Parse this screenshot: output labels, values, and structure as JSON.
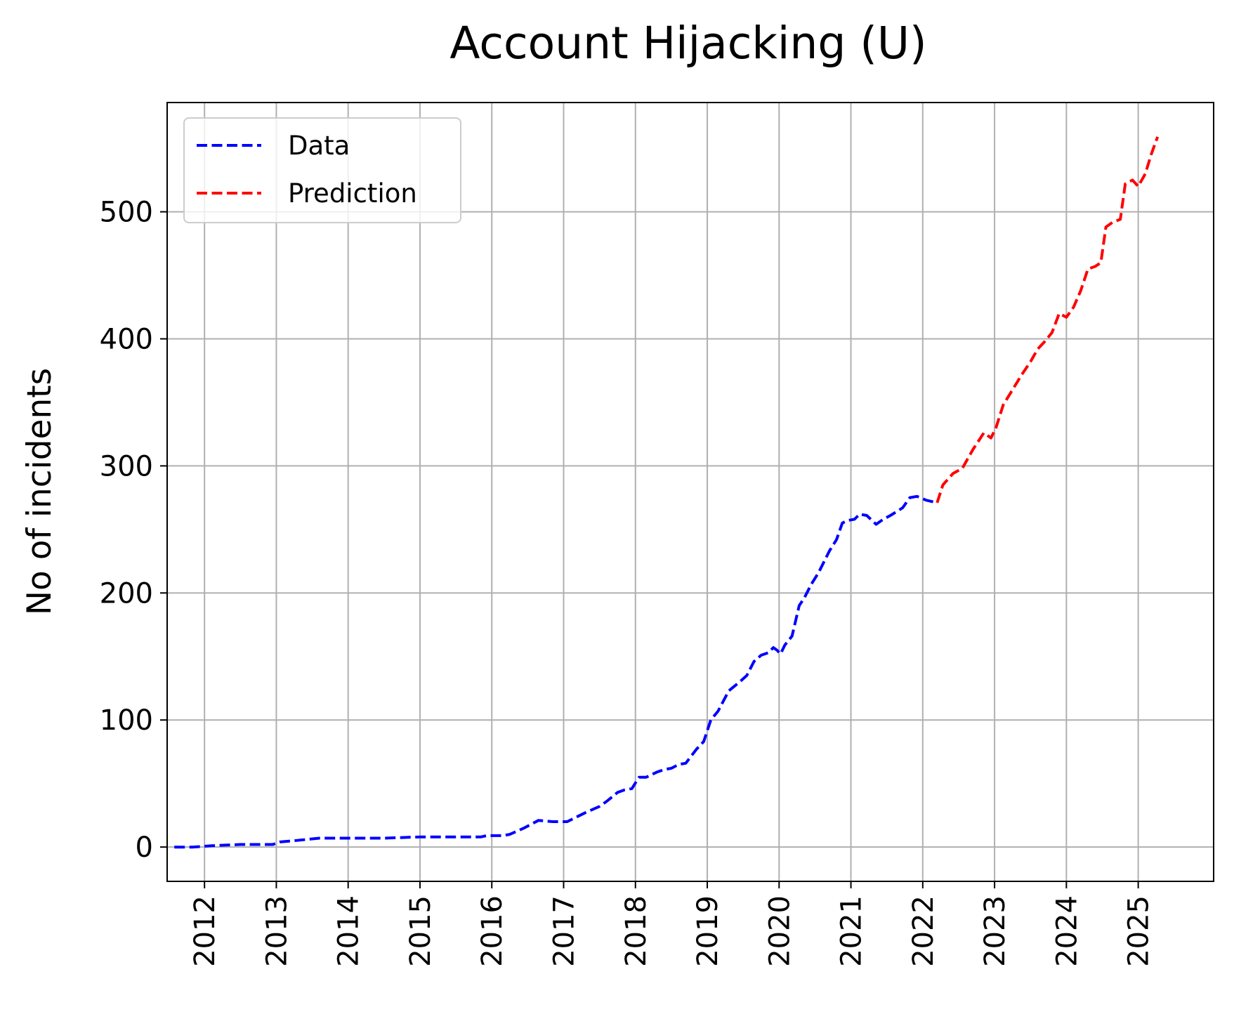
{
  "chart_data": {
    "type": "line",
    "title": "Account Hijacking (U)",
    "xlabel": "",
    "ylabel": "No of incidents",
    "x_ticks": [
      "2012",
      "2013",
      "2014",
      "2015",
      "2016",
      "2017",
      "2018",
      "2019",
      "2020",
      "2021",
      "2022",
      "2023",
      "2024",
      "2025"
    ],
    "y_ticks": [
      "0",
      "100",
      "200",
      "300",
      "400",
      "500"
    ],
    "xlim": [
      2011.48,
      2026.05
    ],
    "ylim": [
      -27,
      586
    ],
    "grid": true,
    "legend_position": "top-left",
    "series": [
      {
        "name": "Data",
        "color": "#0000ff",
        "style": "dashed",
        "points": [
          [
            2011.58,
            0
          ],
          [
            2011.83,
            0
          ],
          [
            2012.1,
            1
          ],
          [
            2012.5,
            2
          ],
          [
            2012.95,
            2
          ],
          [
            2013.05,
            4
          ],
          [
            2013.25,
            5
          ],
          [
            2013.6,
            7
          ],
          [
            2014.0,
            7
          ],
          [
            2014.5,
            7
          ],
          [
            2015.0,
            8
          ],
          [
            2015.3,
            8
          ],
          [
            2015.6,
            8
          ],
          [
            2015.85,
            8
          ],
          [
            2015.93,
            9
          ],
          [
            2016.15,
            9
          ],
          [
            2016.25,
            10
          ],
          [
            2016.45,
            15
          ],
          [
            2016.65,
            21
          ],
          [
            2016.85,
            20
          ],
          [
            2017.05,
            20
          ],
          [
            2017.3,
            27
          ],
          [
            2017.5,
            32
          ],
          [
            2017.6,
            36
          ],
          [
            2017.75,
            43
          ],
          [
            2017.85,
            45
          ],
          [
            2017.95,
            46
          ],
          [
            2018.05,
            55
          ],
          [
            2018.15,
            55
          ],
          [
            2018.3,
            59
          ],
          [
            2018.4,
            61
          ],
          [
            2018.5,
            62
          ],
          [
            2018.6,
            65
          ],
          [
            2018.7,
            66
          ],
          [
            2018.85,
            77
          ],
          [
            2018.95,
            83
          ],
          [
            2019.05,
            100
          ],
          [
            2019.15,
            107
          ],
          [
            2019.3,
            123
          ],
          [
            2019.45,
            130
          ],
          [
            2019.55,
            135
          ],
          [
            2019.65,
            146
          ],
          [
            2019.75,
            151
          ],
          [
            2019.85,
            153
          ],
          [
            2019.92,
            157
          ],
          [
            2019.97,
            155
          ],
          [
            2020.02,
            152
          ],
          [
            2020.08,
            159
          ],
          [
            2020.18,
            166
          ],
          [
            2020.28,
            190
          ],
          [
            2020.35,
            196
          ],
          [
            2020.45,
            207
          ],
          [
            2020.55,
            216
          ],
          [
            2020.7,
            233
          ],
          [
            2020.8,
            242
          ],
          [
            2020.88,
            255
          ],
          [
            2020.95,
            257
          ],
          [
            2021.05,
            258
          ],
          [
            2021.12,
            262
          ],
          [
            2021.22,
            261
          ],
          [
            2021.35,
            254
          ],
          [
            2021.45,
            258
          ],
          [
            2021.55,
            261
          ],
          [
            2021.72,
            267
          ],
          [
            2021.82,
            275
          ],
          [
            2021.92,
            276
          ],
          [
            2022.05,
            273
          ],
          [
            2022.2,
            271
          ]
        ]
      },
      {
        "name": "Prediction",
        "color": "#ff0000",
        "style": "dashed",
        "points": [
          [
            2022.2,
            271
          ],
          [
            2022.28,
            285
          ],
          [
            2022.42,
            294
          ],
          [
            2022.55,
            298
          ],
          [
            2022.7,
            313
          ],
          [
            2022.85,
            326
          ],
          [
            2022.95,
            322
          ],
          [
            2023.02,
            330
          ],
          [
            2023.12,
            348
          ],
          [
            2023.25,
            360
          ],
          [
            2023.38,
            372
          ],
          [
            2023.5,
            382
          ],
          [
            2023.6,
            392
          ],
          [
            2023.7,
            398
          ],
          [
            2023.8,
            405
          ],
          [
            2023.9,
            420
          ],
          [
            2024.0,
            417
          ],
          [
            2024.1,
            425
          ],
          [
            2024.2,
            438
          ],
          [
            2024.3,
            455
          ],
          [
            2024.4,
            457
          ],
          [
            2024.48,
            460
          ],
          [
            2024.55,
            488
          ],
          [
            2024.65,
            492
          ],
          [
            2024.75,
            494
          ],
          [
            2024.82,
            522
          ],
          [
            2024.92,
            525
          ],
          [
            2025.0,
            520
          ],
          [
            2025.1,
            530
          ],
          [
            2025.18,
            545
          ],
          [
            2025.27,
            559
          ]
        ]
      }
    ]
  }
}
